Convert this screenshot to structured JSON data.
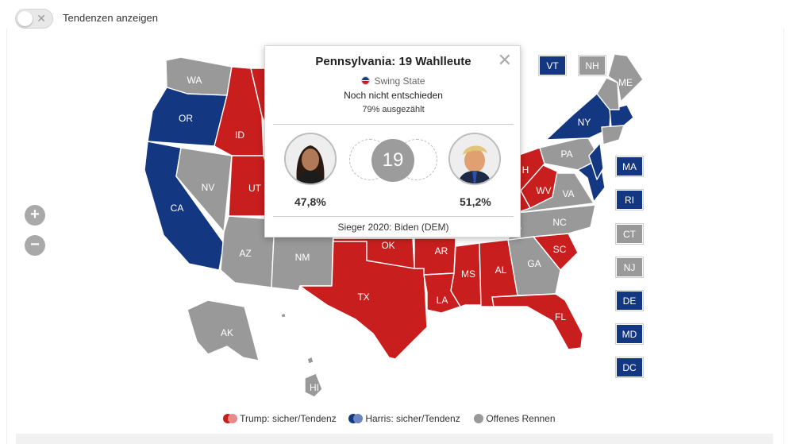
{
  "toggle": {
    "label": "Tendenzen anzeigen",
    "state": "off",
    "icon": "x-icon"
  },
  "zoom": {
    "in": "+",
    "out": "−"
  },
  "colors": {
    "trump": "#c81e1e",
    "trump_trend": "#e88a8a",
    "harris": "#143782",
    "harris_trend": "#6a84c4",
    "open": "#999999"
  },
  "states": {
    "WA": "WA",
    "OR": "OR",
    "CA": "CA",
    "NV": "NV",
    "ID": "ID",
    "UT": "UT",
    "AZ": "AZ",
    "NM": "NM",
    "TX": "TX",
    "OK": "OK",
    "AR": "AR",
    "LA": "LA",
    "MS": "MS",
    "AL": "AL",
    "GA": "GA",
    "FL": "FL",
    "SC": "SC",
    "NC": "NC",
    "VA": "VA",
    "WV": "WV",
    "PA": "PA",
    "NY": "NY",
    "ME": "ME",
    "AK": "AK",
    "HI": "HI",
    "OH_partial": "H"
  },
  "small_states": {
    "vt": "VT",
    "nh": "NH",
    "ma": "MA",
    "ri": "RI",
    "ct": "CT",
    "nj": "NJ",
    "de": "DE",
    "md": "MD",
    "dc": "DC"
  },
  "popup": {
    "title": "Pennsylvania: 19 Wahlleute",
    "close": "✕",
    "swing": "Swing State",
    "status": "Noch nicht entschieden",
    "counted": "79% ausgezählt",
    "electors": "19",
    "harris_pct": "47,8%",
    "trump_pct": "51,2%",
    "winner_2020": "Sieger 2020: Biden (DEM)"
  },
  "legend": {
    "trump": "Trump: sicher/Tendenz",
    "harris": "Harris: sicher/Tendenz",
    "open": "Offenes Rennen"
  }
}
